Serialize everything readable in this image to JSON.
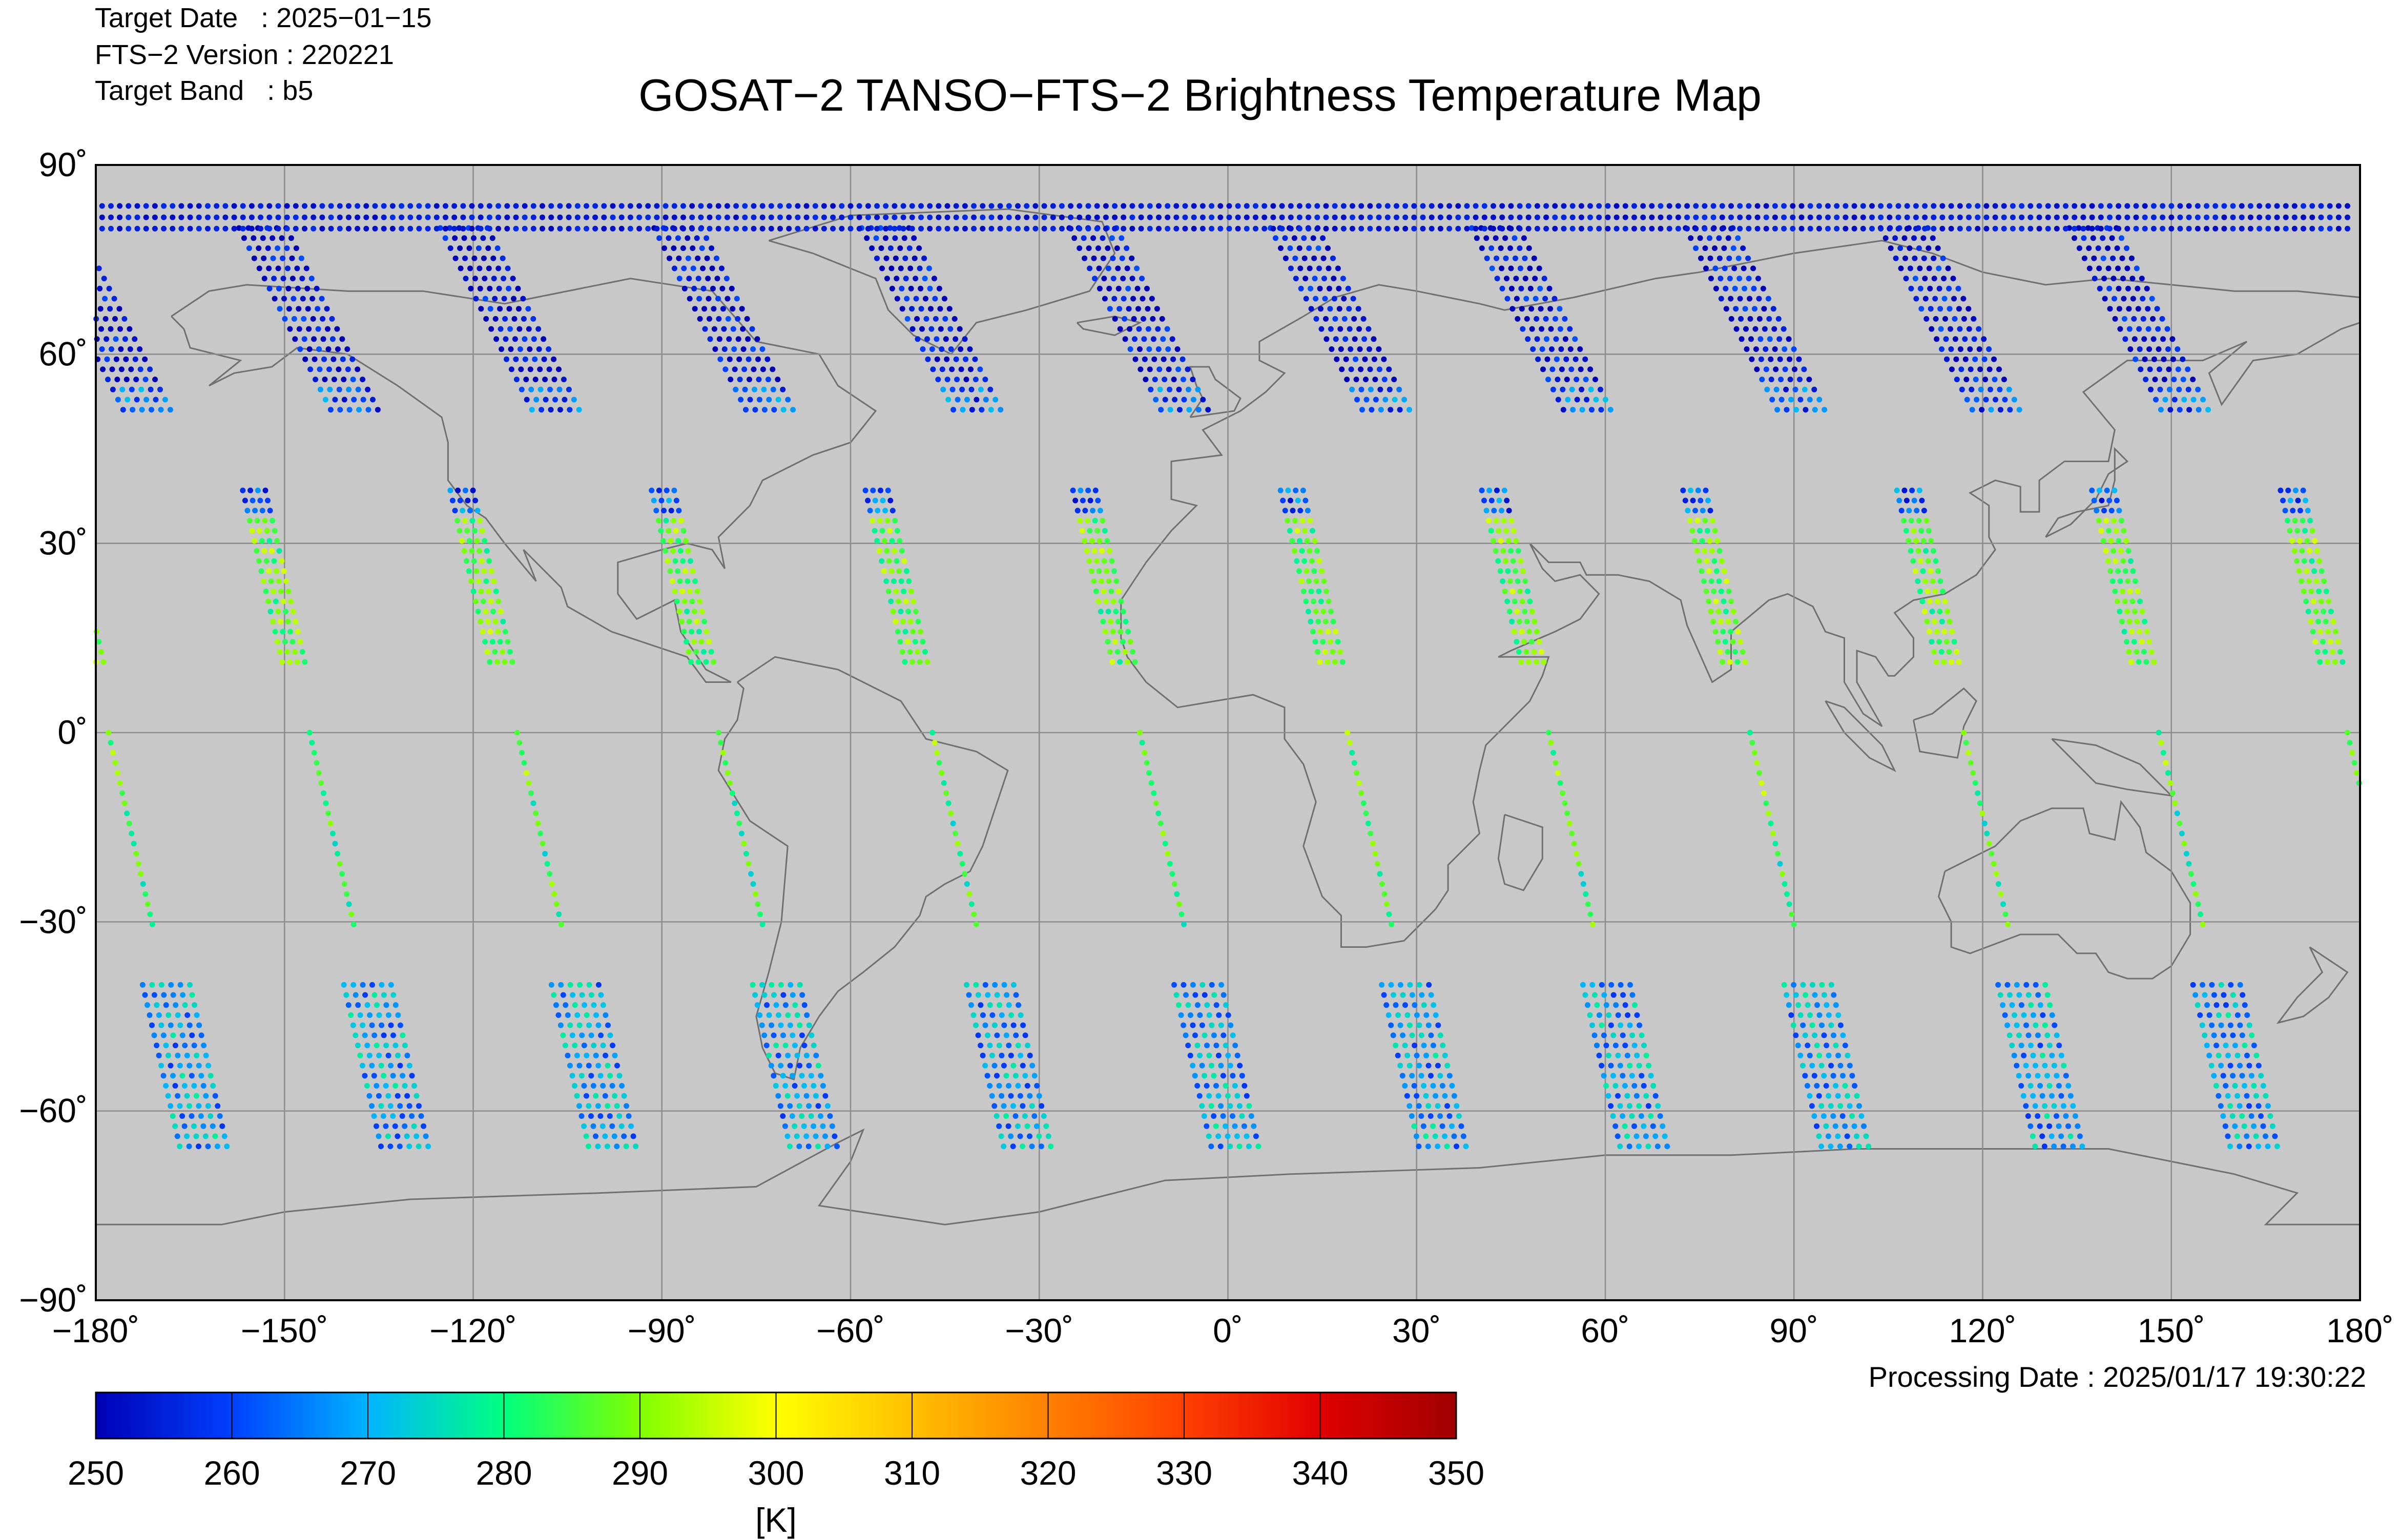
{
  "header": {
    "target_date": "Target Date   : 2025−01−15",
    "fts_version": "FTS−2 Version : 220221",
    "target_band": "Target Band   : b5",
    "title": "GOSAT−2 TANSO−FTS−2 Brightness Temperature Map"
  },
  "map": {
    "projection": "equirectangular",
    "background_color": "#c8c8c8",
    "coastline_color": "#707070",
    "grid": true,
    "grid_color": "#8c8c8c",
    "lon_range": [
      -180,
      180
    ],
    "lat_range": [
      -90,
      90
    ],
    "x_ticks": [
      {
        "value": -180,
        "label": "−180˚"
      },
      {
        "value": -150,
        "label": "−150˚"
      },
      {
        "value": -120,
        "label": "−120˚"
      },
      {
        "value": -90,
        "label": "−90˚"
      },
      {
        "value": -60,
        "label": "−60˚"
      },
      {
        "value": -30,
        "label": "−30˚"
      },
      {
        "value": 0,
        "label": "0˚"
      },
      {
        "value": 30,
        "label": "30˚"
      },
      {
        "value": 60,
        "label": "60˚"
      },
      {
        "value": 90,
        "label": "90˚"
      },
      {
        "value": 120,
        "label": "120˚"
      },
      {
        "value": 150,
        "label": "150˚"
      },
      {
        "value": 180,
        "label": "180˚"
      }
    ],
    "y_ticks": [
      {
        "value": 90,
        "label": "90˚"
      },
      {
        "value": 60,
        "label": "60˚"
      },
      {
        "value": 30,
        "label": "30˚"
      },
      {
        "value": 0,
        "label": "0˚"
      },
      {
        "value": -30,
        "label": "−30˚"
      },
      {
        "value": -60,
        "label": "−60˚"
      },
      {
        "value": -90,
        "label": "−90˚"
      }
    ],
    "orbit_tracks": {
      "descending_equator_lons": [
        -178,
        -146,
        -113,
        -81,
        -47,
        -14,
        19,
        51,
        83,
        117,
        148,
        178
      ],
      "track_slope_deg_lon_per_deg_lat": -0.23,
      "data_color_scale": "jet",
      "value_range_K": [
        250,
        350
      ]
    }
  },
  "colorbar": {
    "min": 250,
    "max": 350,
    "unit": "[K]",
    "ticks": [
      "250",
      "260",
      "270",
      "280",
      "290",
      "300",
      "310",
      "320",
      "330",
      "340",
      "350"
    ],
    "colors": [
      "#0000b4",
      "#0040ff",
      "#00b4ff",
      "#00ff80",
      "#80ff00",
      "#ffff00",
      "#ffc000",
      "#ff8000",
      "#ff4000",
      "#e00000",
      "#a00000"
    ]
  },
  "footer": {
    "processing_date": "Processing Date : 2025/01/17 19:30:22"
  }
}
